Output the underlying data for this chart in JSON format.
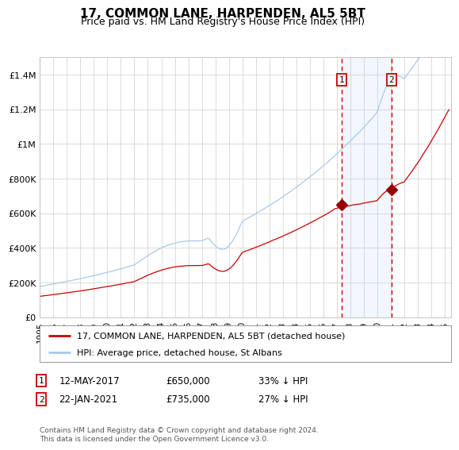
{
  "title": "17, COMMON LANE, HARPENDEN, AL5 5BT",
  "subtitle": "Price paid vs. HM Land Registry's House Price Index (HPI)",
  "title_fontsize": 11,
  "subtitle_fontsize": 9,
  "ylim": [
    0,
    1500000
  ],
  "xlim_start": 1995.0,
  "xlim_end": 2025.5,
  "background_color": "#ffffff",
  "plot_bg_color": "#ffffff",
  "grid_color": "#cccccc",
  "hpi_color": "#aac8e8",
  "house_color": "#cc0000",
  "vline_color": "#cc0000",
  "highlight_bg": "#d8eaf8",
  "marker_color": "#990000",
  "legend_label_house": "17, COMMON LANE, HARPENDEN, AL5 5BT (detached house)",
  "legend_label_hpi": "HPI: Average price, detached house, St Albans",
  "sale1_date": "12-MAY-2017",
  "sale1_price": "£650,000",
  "sale1_hpi": "33% ↓ HPI",
  "sale1_year": 2017.36,
  "sale1_value": 650000,
  "sale2_date": "22-JAN-2021",
  "sale2_price": "£735,000",
  "sale2_hpi": "27% ↓ HPI",
  "sale2_year": 2021.06,
  "sale2_value": 735000,
  "footer": "Contains HM Land Registry data © Crown copyright and database right 2024.\nThis data is licensed under the Open Government Licence v3.0.",
  "yticks": [
    0,
    200000,
    400000,
    600000,
    800000,
    1000000,
    1200000,
    1400000
  ],
  "ytick_labels": [
    "£0",
    "£200K",
    "£400K",
    "£600K",
    "£800K",
    "£1M",
    "£1.2M",
    "£1.4M"
  ],
  "xticks": [
    1995,
    1996,
    1997,
    1998,
    1999,
    2000,
    2001,
    2002,
    2003,
    2004,
    2005,
    2006,
    2007,
    2008,
    2009,
    2010,
    2011,
    2012,
    2013,
    2014,
    2015,
    2016,
    2017,
    2018,
    2019,
    2020,
    2021,
    2022,
    2023,
    2024,
    2025
  ]
}
